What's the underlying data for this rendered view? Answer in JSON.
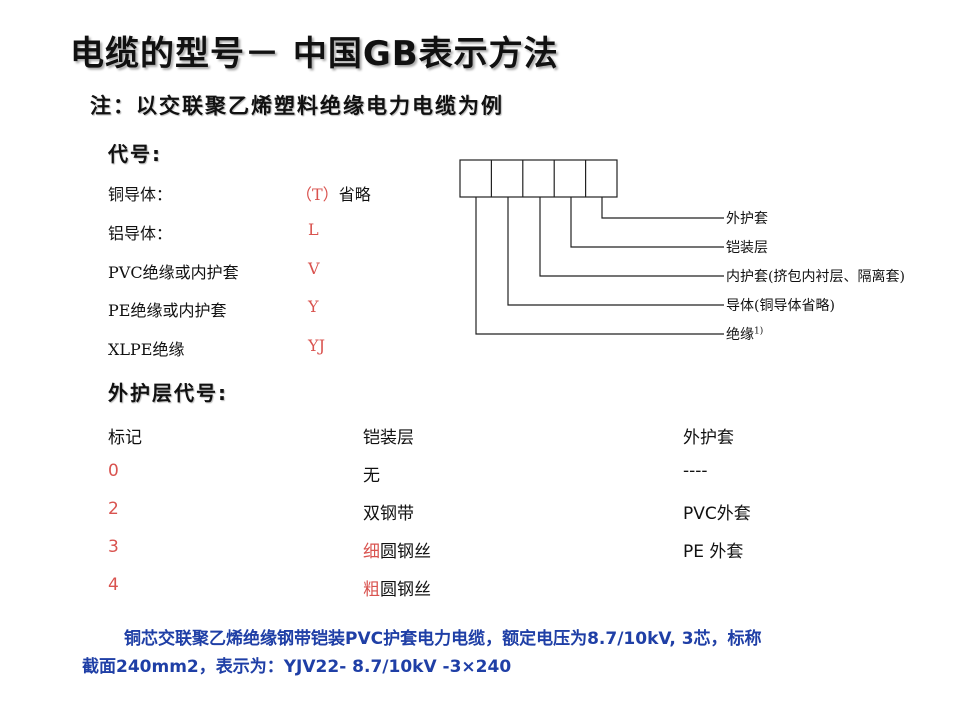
{
  "title": "电缆的型号－ 中国GB表示方法",
  "note": "注：以交联聚乙烯塑料绝缘电力电缆为例",
  "codes": {
    "heading": "代号:",
    "items": [
      {
        "label": "铜导体：",
        "code": "（T）",
        "suffix": "省略"
      },
      {
        "label": "铝导体：",
        "code": "L",
        "suffix": ""
      },
      {
        "label": "PVC绝缘或内护套",
        "code": "V",
        "suffix": ""
      },
      {
        "label": "PE绝缘或内护套",
        "code": "Y",
        "suffix": ""
      },
      {
        "label": "XLPE绝缘",
        "code": "YJ",
        "suffix": ""
      }
    ]
  },
  "diagram": {
    "labels": [
      "外护套",
      "铠装层",
      "内护套(挤包内衬层、隔离套)",
      "导体(铜导体省略)",
      "绝缘"
    ],
    "footnote": "1)"
  },
  "sheath": {
    "heading": "外护层代号:",
    "columns": [
      "标记",
      "铠装层",
      "外护套"
    ],
    "rows": [
      {
        "mark": "0",
        "armor_hl": "",
        "armor": "无",
        "sheath": "----"
      },
      {
        "mark": "2",
        "armor_hl": "",
        "armor": "双钢带",
        "sheath": "PVC外套"
      },
      {
        "mark": "3",
        "armor_hl": "细",
        "armor": "圆钢丝",
        "sheath": "PE 外套"
      },
      {
        "mark": "4",
        "armor_hl": "粗",
        "armor": "圆钢丝",
        "sheath": ""
      }
    ]
  },
  "example": {
    "line1": "铜芯交联聚乙烯绝缘钢带铠装PVC护套电力电缆，额定电压为8.7/10kV, 3芯，标称",
    "line2": "截面240mm2，表示为：YJV22- 8.7/10kV -3×240"
  },
  "colors": {
    "highlight": "#d9534f",
    "example_text": "#1f3fa6"
  }
}
